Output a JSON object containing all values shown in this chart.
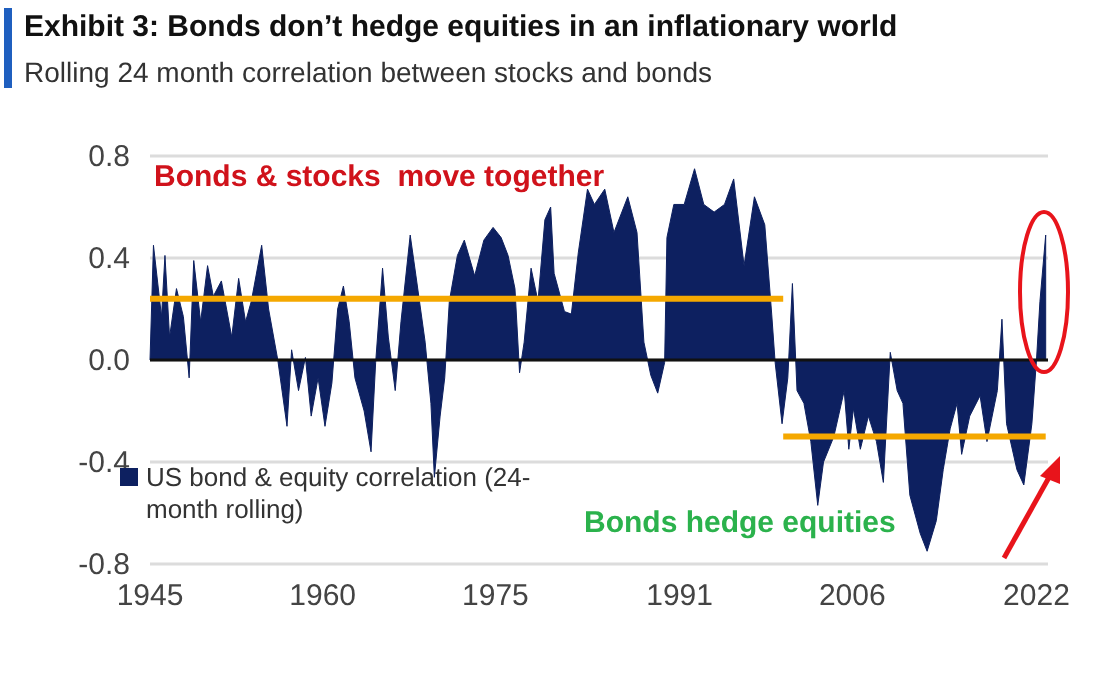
{
  "chart_data": {
    "type": "area",
    "title": "Exhibit 3: Bonds don’t hedge equities in an inflationary world",
    "subtitle": "Rolling 24 month correlation between stocks and bonds",
    "annotations": [
      "Bonds & stocks  move together",
      "Bonds hedge equities"
    ],
    "xlim": [
      1945,
      2023
    ],
    "xticks": [
      1945,
      1960,
      1975,
      1991,
      2006,
      2022
    ],
    "ylim": [
      -0.8,
      0.8
    ],
    "yticks": [
      {
        "value": 0.8,
        "label": "0.8"
      },
      {
        "value": 0.4,
        "label": "0.4"
      },
      {
        "value": 0,
        "label": "0.0"
      },
      {
        "value": -0.4,
        "label": "-0.4"
      },
      {
        "value": -0.8,
        "label": "-0.8"
      }
    ],
    "grid": "y",
    "legend": "bottom left",
    "marker": "none",
    "series": [
      {
        "name": "US bond & equity correlation (24-month rolling)",
        "color": "#0d2060",
        "x": [
          1945,
          1945.3,
          1946,
          1946.3,
          1946.7,
          1947.3,
          1947.9,
          1948.4,
          1948.8,
          1949.4,
          1950,
          1950.5,
          1951.2,
          1952.1,
          1952.7,
          1953.3,
          1953.8,
          1954.7,
          1955.3,
          1956.1,
          1956.9,
          1957.3,
          1957.9,
          1958.5,
          1959,
          1959.6,
          1960.2,
          1960.8,
          1961.3,
          1961.8,
          1962.3,
          1962.8,
          1963.6,
          1964.2,
          1964.6,
          1965.2,
          1965.7,
          1966.3,
          1966.8,
          1967.6,
          1968.1,
          1968.9,
          1969.4,
          1969.7,
          1970.2,
          1970.6,
          1971,
          1971.7,
          1972.3,
          1973.2,
          1974,
          1974.8,
          1975.5,
          1976.1,
          1976.7,
          1977.1,
          1977.5,
          1978.1,
          1978.7,
          1979.3,
          1979.8,
          1980.1,
          1981,
          1981.6,
          1982.2,
          1983,
          1983.6,
          1984.5,
          1985.3,
          1986.5,
          1987.3,
          1987.9,
          1988.5,
          1989.1,
          1989.7,
          1989.9,
          1990.5,
          1991.4,
          1992.3,
          1993.1,
          1994,
          1994.9,
          1995.7,
          1996.6,
          1997.5,
          1998.4,
          1999,
          1999.3,
          1999.9,
          2000.4,
          2000.8,
          2001.2,
          2001.8,
          2002.4,
          2003,
          2003.5,
          2004.4,
          2005.3,
          2005.7,
          2006.1,
          2006.7,
          2007.4,
          2008.1,
          2008.7,
          2009.3,
          2009.9,
          2010.4,
          2011,
          2011.9,
          2012.5,
          2013.3,
          2013.9,
          2014.5,
          2015.1,
          2015.5,
          2016.2,
          2017.1,
          2017.7,
          2018.6,
          2019,
          2019.4,
          2020.3,
          2020.9,
          2021.6,
          2022,
          2022.3,
          2022.8
        ],
        "values": [
          0,
          0.45,
          0.17,
          0.41,
          0.09,
          0.28,
          0.17,
          -0.07,
          0.39,
          0.15,
          0.37,
          0.25,
          0.31,
          0.09,
          0.32,
          0.15,
          0.23,
          0.45,
          0.2,
          0,
          -0.26,
          0.04,
          -0.12,
          0.01,
          -0.22,
          -0.07,
          -0.26,
          -0.09,
          0.2,
          0.29,
          0.15,
          -0.07,
          -0.2,
          -0.36,
          -0.01,
          0.36,
          0.09,
          -0.12,
          0.15,
          0.49,
          0.33,
          0.07,
          -0.17,
          -0.46,
          -0.22,
          -0.07,
          0.23,
          0.41,
          0.47,
          0.33,
          0.47,
          0.52,
          0.48,
          0.41,
          0.28,
          -0.05,
          0.07,
          0.36,
          0.23,
          0.55,
          0.6,
          0.34,
          0.19,
          0.18,
          0.42,
          0.67,
          0.61,
          0.67,
          0.5,
          0.64,
          0.5,
          0.07,
          -0.06,
          -0.13,
          -0.01,
          0.48,
          0.61,
          0.61,
          0.75,
          0.61,
          0.58,
          0.61,
          0.71,
          0.37,
          0.64,
          0.53,
          0.18,
          -0.01,
          -0.25,
          -0.07,
          0.3,
          -0.12,
          -0.17,
          -0.32,
          -0.57,
          -0.4,
          -0.3,
          -0.12,
          -0.35,
          -0.19,
          -0.35,
          -0.22,
          -0.32,
          -0.48,
          0.03,
          -0.12,
          -0.17,
          -0.53,
          -0.68,
          -0.75,
          -0.63,
          -0.43,
          -0.27,
          -0.17,
          -0.37,
          -0.22,
          -0.14,
          -0.32,
          -0.12,
          0.16,
          -0.25,
          -0.43,
          -0.49,
          -0.25,
          0,
          0.23,
          0.49
        ]
      },
      {
        "type": "line",
        "color": "#f5a800",
        "x": [
          1945,
          2000
        ],
        "values": [
          0.24,
          0.24
        ]
      },
      {
        "type": "line",
        "color": "#f5a800",
        "x": [
          2000,
          2022.8
        ],
        "values": [
          -0.3,
          -0.3
        ]
      }
    ]
  }
}
